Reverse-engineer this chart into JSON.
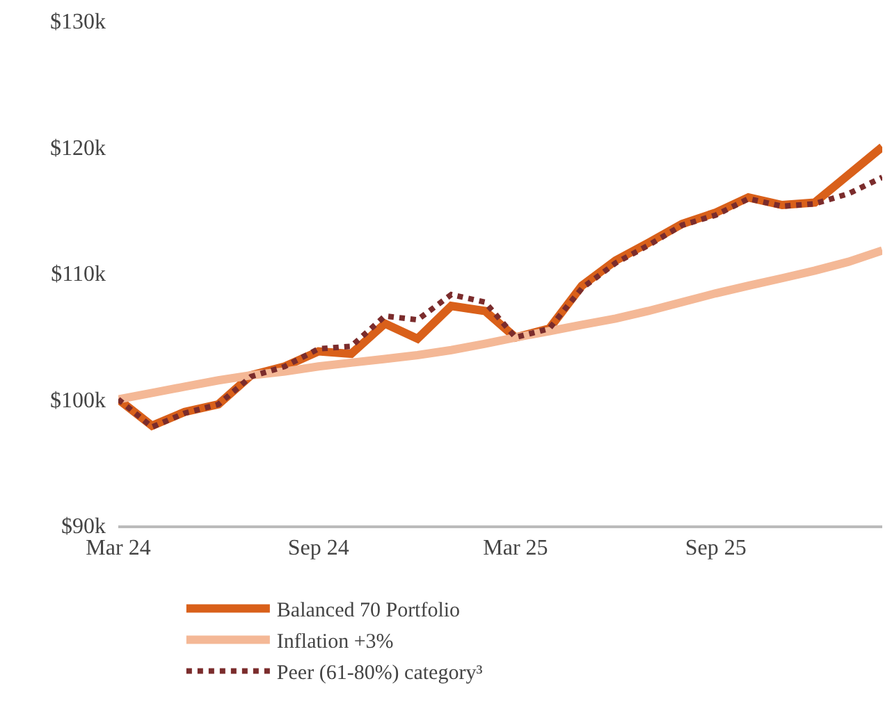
{
  "chart_data": {
    "type": "line",
    "x": [
      "2024-03",
      "2024-04",
      "2024-05",
      "2024-06",
      "2024-07",
      "2024-08",
      "2024-09",
      "2024-10",
      "2024-11",
      "2024-12",
      "2025-01",
      "2025-02",
      "2025-03",
      "2025-04",
      "2025-05",
      "2025-06",
      "2025-07",
      "2025-08",
      "2025-09",
      "2025-10",
      "2025-11",
      "2025-12",
      "2026-01",
      "2026-02"
    ],
    "series": [
      {
        "name": "Balanced 70 Portfolio",
        "color": "#d9601a",
        "line_style": "solid",
        "values": [
          100.0,
          97.9,
          99.0,
          99.6,
          101.9,
          102.6,
          103.8,
          103.6,
          106.0,
          104.8,
          107.4,
          107.0,
          104.9,
          105.6,
          109.0,
          111.0,
          112.4,
          113.9,
          114.8,
          116.0,
          115.4,
          115.6,
          117.8,
          120.0
        ]
      },
      {
        "name": "Inflation +3%",
        "color": "#f4b896",
        "line_style": "solid",
        "values": [
          100.0,
          100.5,
          101.0,
          101.5,
          101.9,
          102.2,
          102.6,
          102.9,
          103.2,
          103.5,
          103.9,
          104.4,
          104.9,
          105.4,
          105.9,
          106.4,
          107.0,
          107.7,
          108.4,
          109.0,
          109.6,
          110.2,
          110.9,
          111.8
        ]
      },
      {
        "name": "Peer (61-80%) category³",
        "color": "#7b2c2c",
        "line_style": "dotted",
        "values": [
          100.0,
          97.8,
          98.9,
          99.6,
          101.8,
          102.6,
          104.0,
          104.2,
          106.6,
          106.3,
          108.3,
          107.7,
          104.9,
          105.6,
          108.8,
          110.8,
          112.2,
          113.8,
          114.6,
          115.9,
          115.3,
          115.5,
          116.3,
          117.6
        ]
      }
    ],
    "xlim": [
      "2024-03",
      "2026-02"
    ],
    "xticks": [
      {
        "value": "2024-03",
        "label": "Mar 24"
      },
      {
        "value": "2024-09",
        "label": "Sep 24"
      },
      {
        "value": "2025-03",
        "label": "Mar 25"
      },
      {
        "value": "2025-09",
        "label": "Sep 25"
      }
    ],
    "ylim": [
      90,
      130
    ],
    "yticks": [
      {
        "value": 90,
        "label": "$90k"
      },
      {
        "value": 100,
        "label": "$100k"
      },
      {
        "value": 110,
        "label": "$110k"
      },
      {
        "value": 120,
        "label": "$120k"
      },
      {
        "value": 130,
        "label": "$130k"
      }
    ],
    "legend": "bottom",
    "marker": "none"
  }
}
